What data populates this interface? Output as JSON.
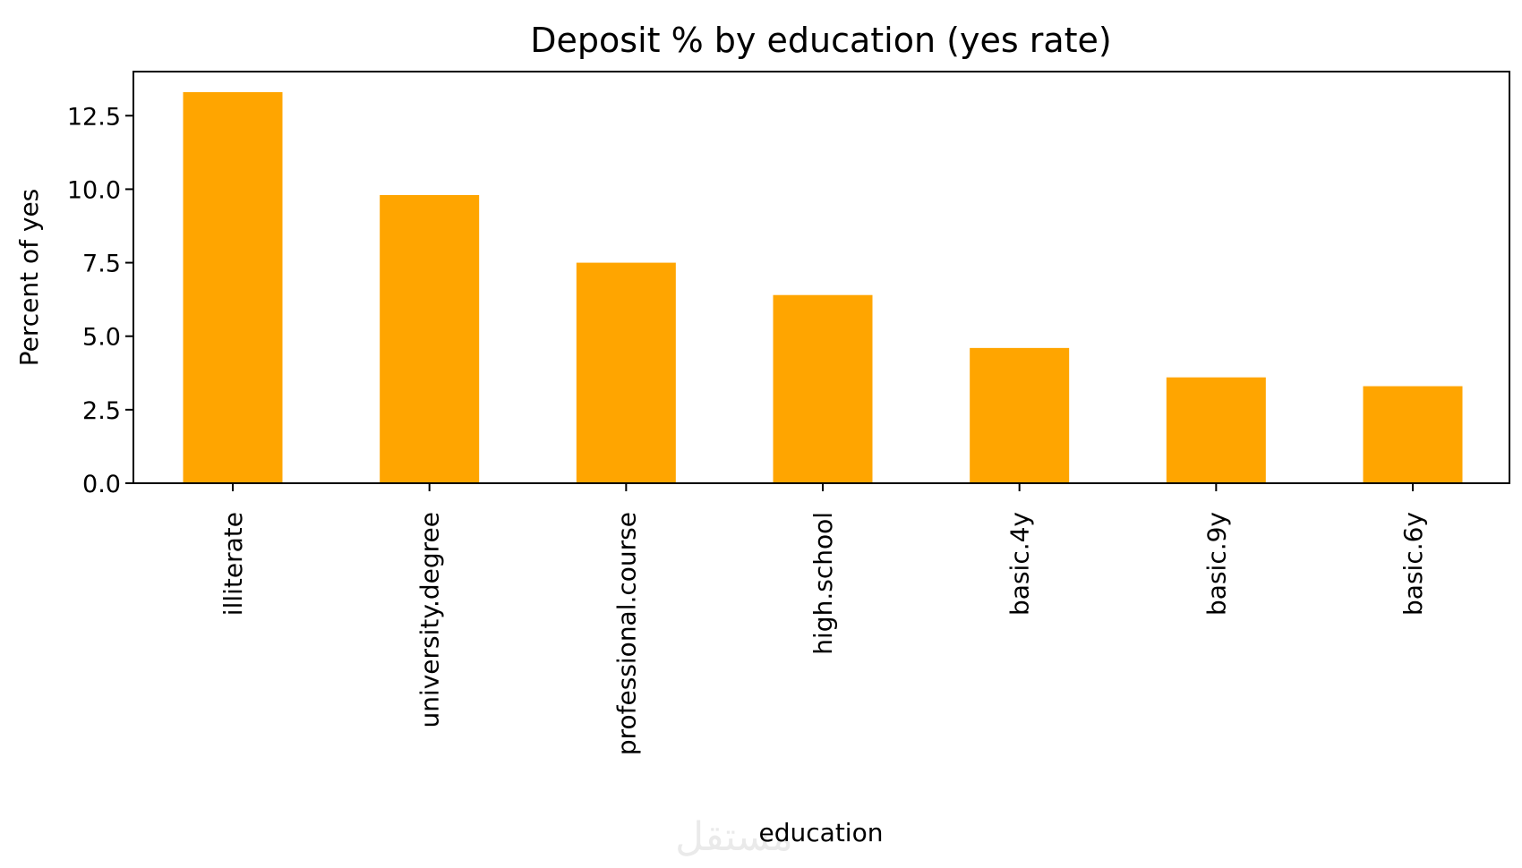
{
  "chart_data": {
    "type": "bar",
    "title": "Deposit % by education (yes rate)",
    "xlabel": "education",
    "ylabel": "Percent of yes",
    "categories": [
      "illiterate",
      "university.degree",
      "professional.course",
      "high.school",
      "basic.4y",
      "basic.9y",
      "basic.6y"
    ],
    "values": [
      13.3,
      9.8,
      7.5,
      6.4,
      4.6,
      3.6,
      3.3
    ],
    "ylim": [
      0,
      14
    ],
    "yticks": [
      0.0,
      2.5,
      5.0,
      7.5,
      10.0,
      12.5
    ],
    "ytick_labels": [
      "0.0",
      "2.5",
      "5.0",
      "7.5",
      "10.0",
      "12.5"
    ],
    "bar_color": "#FFA500",
    "grid": false,
    "legend": "none"
  },
  "watermark": "مستقل"
}
